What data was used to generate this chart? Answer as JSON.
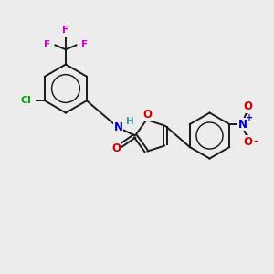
{
  "bg_color": "#ececec",
  "bond_color": "#1a1a1a",
  "atom_colors": {
    "N": "#0000cc",
    "O": "#cc0000",
    "F": "#cc00cc",
    "Cl": "#00aa00",
    "H": "#4a9a9a"
  },
  "figsize": [
    3.0,
    3.0
  ],
  "dpi": 100
}
